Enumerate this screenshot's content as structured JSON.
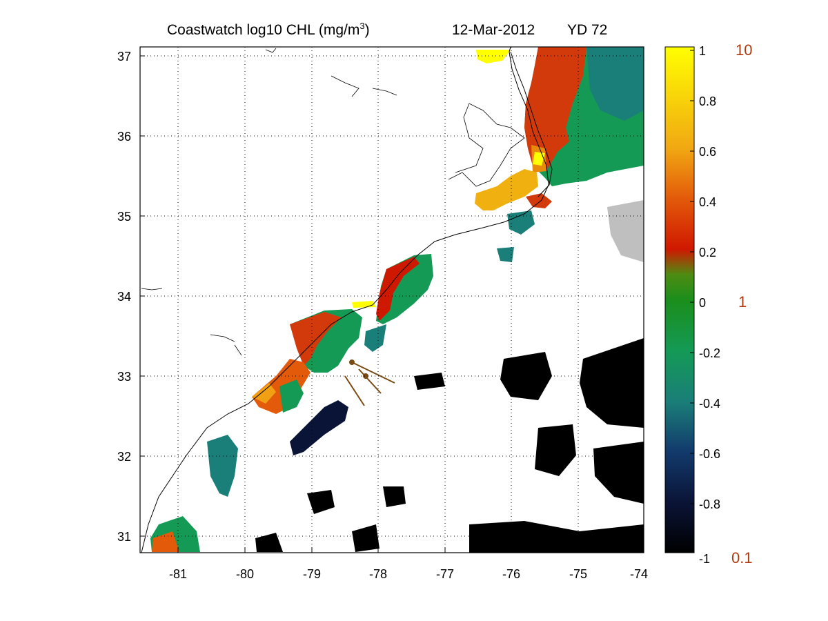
{
  "title": {
    "main": "Coastwatch  log10  CHL (mg/m",
    "superscript": "3",
    "close": ")",
    "date": "12-Mar-2012",
    "yd": "YD 72"
  },
  "map": {
    "lon_range": [
      -81.6,
      -74.0
    ],
    "lat_range": [
      30.8,
      37.1
    ],
    "lon_ticks": [
      "-81",
      "-80",
      "-79",
      "-78",
      "-77",
      "-76",
      "-75",
      "-74"
    ],
    "lat_ticks": [
      "31",
      "32",
      "33",
      "34",
      "35",
      "36",
      "37"
    ],
    "grid": "dotted",
    "coastline_color": "#000000",
    "land_color": "#ffffff",
    "missing_color": "#ffffff"
  },
  "colorbar": {
    "range": [
      -1,
      1
    ],
    "ticks": [
      "1",
      "0.8",
      "0.6",
      "0.4",
      "0.2",
      "0",
      "-0.2",
      "-0.4",
      "-0.6",
      "-0.8",
      "-1"
    ],
    "right_labels": [
      "10",
      "1",
      "0.1"
    ],
    "right_label_color": "#b03a10",
    "colormap": [
      "#000000",
      "#0a1436",
      "#123a6c",
      "#1a7f78",
      "#149a55",
      "#1b8e1b",
      "#4e8c12",
      "#cf1800",
      "#e35a0a",
      "#f1a812",
      "#ffff00"
    ]
  },
  "annotations": {
    "sample_tracks_color": "#7a4a12"
  }
}
